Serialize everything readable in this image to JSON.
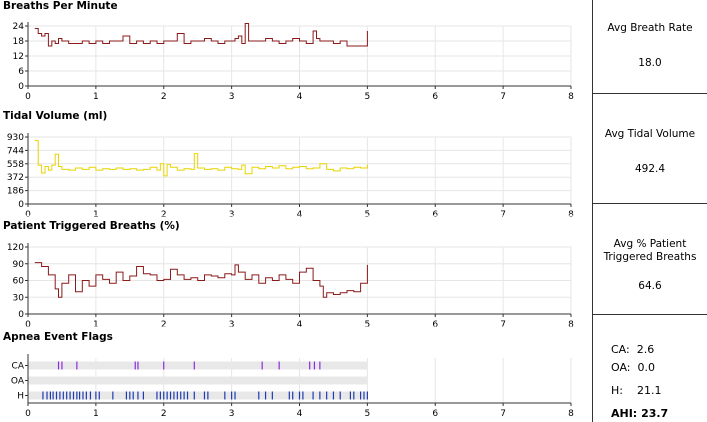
{
  "chart_data": [
    {
      "type": "line",
      "title": "Breaths Per Minute",
      "color": "#8b1a1a",
      "xlim": [
        0,
        8
      ],
      "ylim": [
        0,
        24
      ],
      "yticks": [
        0,
        6,
        12,
        18,
        24
      ],
      "xticks": [
        0,
        1,
        2,
        3,
        4,
        5,
        6,
        7,
        8
      ],
      "grid": true,
      "series": [
        {
          "x": [
            0.1,
            0.15,
            0.2,
            0.25,
            0.3,
            0.35,
            0.4,
            0.45,
            0.5,
            0.6,
            0.7,
            0.8,
            0.9,
            1.0,
            1.1,
            1.2,
            1.3,
            1.4,
            1.5,
            1.6,
            1.7,
            1.8,
            1.9,
            2.0,
            2.1,
            2.2,
            2.3,
            2.4,
            2.5,
            2.6,
            2.7,
            2.8,
            2.9,
            3.0,
            3.05,
            3.1,
            3.15,
            3.2,
            3.25,
            3.3,
            3.4,
            3.5,
            3.6,
            3.7,
            3.8,
            3.9,
            4.0,
            4.1,
            4.2,
            4.25,
            4.3,
            4.4,
            4.5,
            4.6,
            4.7,
            4.8,
            4.9,
            4.95,
            5.0
          ],
          "y": [
            23,
            21,
            20,
            21,
            16,
            18,
            17,
            19,
            18,
            17,
            17,
            18,
            17,
            18,
            17,
            18,
            18,
            20,
            17,
            18,
            17,
            18,
            17,
            18,
            18,
            21,
            17,
            18,
            18,
            19,
            18,
            17,
            18,
            18,
            19,
            20,
            17,
            25,
            18,
            18,
            18,
            19,
            18,
            17,
            18,
            19,
            18,
            17,
            22,
            19,
            18,
            18,
            17,
            18,
            16,
            16,
            16,
            16,
            22
          ]
        }
      ]
    },
    {
      "type": "line",
      "title": "Tidal Volume (ml)",
      "color": "#e8d400",
      "xlim": [
        0,
        8
      ],
      "ylim": [
        0,
        930
      ],
      "yticks": [
        0,
        186,
        372,
        558,
        744,
        930
      ],
      "xticks": [
        0,
        1,
        2,
        3,
        4,
        5,
        6,
        7,
        8
      ],
      "grid": true,
      "series": [
        {
          "x": [
            0.1,
            0.15,
            0.2,
            0.25,
            0.3,
            0.35,
            0.4,
            0.45,
            0.5,
            0.6,
            0.7,
            0.8,
            0.9,
            1.0,
            1.1,
            1.2,
            1.3,
            1.4,
            1.5,
            1.6,
            1.7,
            1.8,
            1.9,
            1.95,
            2.0,
            2.05,
            2.1,
            2.2,
            2.3,
            2.4,
            2.45,
            2.5,
            2.6,
            2.7,
            2.8,
            2.9,
            3.0,
            3.1,
            3.15,
            3.2,
            3.3,
            3.4,
            3.5,
            3.6,
            3.7,
            3.8,
            3.9,
            4.0,
            4.1,
            4.2,
            4.3,
            4.4,
            4.5,
            4.6,
            4.7,
            4.8,
            4.9,
            5.0
          ],
          "y": [
            880,
            540,
            430,
            520,
            470,
            540,
            690,
            520,
            480,
            470,
            500,
            480,
            510,
            470,
            490,
            480,
            500,
            480,
            490,
            470,
            480,
            510,
            470,
            560,
            390,
            550,
            510,
            470,
            490,
            480,
            700,
            500,
            480,
            490,
            470,
            510,
            490,
            480,
            540,
            420,
            510,
            490,
            520,
            500,
            530,
            490,
            510,
            520,
            490,
            500,
            560,
            480,
            460,
            500,
            490,
            510,
            500,
            550
          ]
        }
      ]
    },
    {
      "type": "line",
      "title": "Patient Triggered Breaths (%)",
      "color": "#8b1a1a",
      "xlim": [
        0,
        8
      ],
      "ylim": [
        0,
        120
      ],
      "yticks": [
        0,
        30,
        60,
        90,
        120
      ],
      "xticks": [
        0,
        1,
        2,
        3,
        4,
        5,
        6,
        7,
        8
      ],
      "grid": true,
      "series": [
        {
          "x": [
            0.1,
            0.2,
            0.3,
            0.4,
            0.45,
            0.5,
            0.6,
            0.7,
            0.8,
            0.9,
            1.0,
            1.1,
            1.2,
            1.3,
            1.4,
            1.5,
            1.6,
            1.7,
            1.8,
            1.9,
            2.0,
            2.1,
            2.2,
            2.3,
            2.4,
            2.5,
            2.6,
            2.7,
            2.8,
            2.9,
            3.0,
            3.05,
            3.1,
            3.2,
            3.3,
            3.4,
            3.5,
            3.6,
            3.7,
            3.8,
            3.9,
            4.0,
            4.1,
            4.2,
            4.3,
            4.35,
            4.4,
            4.5,
            4.6,
            4.7,
            4.8,
            4.9,
            5.0
          ],
          "y": [
            92,
            85,
            70,
            45,
            30,
            55,
            70,
            40,
            60,
            50,
            70,
            62,
            55,
            75,
            60,
            68,
            85,
            72,
            70,
            60,
            62,
            80,
            70,
            62,
            65,
            60,
            70,
            68,
            65,
            72,
            70,
            88,
            75,
            62,
            70,
            55,
            65,
            60,
            70,
            62,
            55,
            75,
            82,
            60,
            50,
            30,
            38,
            35,
            38,
            42,
            40,
            55,
            88
          ]
        }
      ]
    },
    {
      "type": "scatter",
      "title": "Apnea Event Flags",
      "xlim": [
        0,
        8
      ],
      "xticks": [
        0,
        1,
        2,
        3,
        4,
        5,
        6,
        7,
        8
      ],
      "categories": [
        "CA",
        "OA",
        "H"
      ],
      "series": [
        {
          "name": "CA",
          "color": "#8a2be2",
          "x": [
            0.45,
            0.5,
            0.72,
            1.58,
            1.62,
            2.0,
            2.45,
            3.45,
            3.7,
            4.15,
            4.22,
            4.3
          ]
        },
        {
          "name": "OA",
          "color": "#8a2be2",
          "x": []
        },
        {
          "name": "H",
          "color": "#1f3bb3",
          "x": [
            0.22,
            0.28,
            0.33,
            0.37,
            0.42,
            0.47,
            0.52,
            0.57,
            0.62,
            0.67,
            0.72,
            0.76,
            0.81,
            0.86,
            0.92,
            1.0,
            1.05,
            1.25,
            1.45,
            1.5,
            1.55,
            1.62,
            1.7,
            1.9,
            1.95,
            2.0,
            2.05,
            2.1,
            2.15,
            2.2,
            2.25,
            2.3,
            2.35,
            2.45,
            2.6,
            2.65,
            2.9,
            3.0,
            3.05,
            3.4,
            3.5,
            3.6,
            3.85,
            3.9,
            4.0,
            4.05,
            4.2,
            4.3,
            4.4,
            4.5,
            4.6,
            4.75,
            4.8,
            4.9,
            4.95,
            5.0
          ]
        }
      ]
    }
  ],
  "summary": {
    "breath_rate": {
      "label": "Avg Breath Rate",
      "value": "18.0"
    },
    "tidal_volume": {
      "label": "Avg Tidal Volume",
      "value": "492.4"
    },
    "patient_triggered": {
      "label": "Avg % Patient Triggered Breaths",
      "value": "64.6"
    },
    "apnea": {
      "ca_label": "CA:",
      "ca_value": "2.6",
      "oa_label": "OA:",
      "oa_value": "0.0",
      "h_label": "H:",
      "h_value": "21.1",
      "ahi_label": "AHI:",
      "ahi_value": "23.7"
    }
  }
}
